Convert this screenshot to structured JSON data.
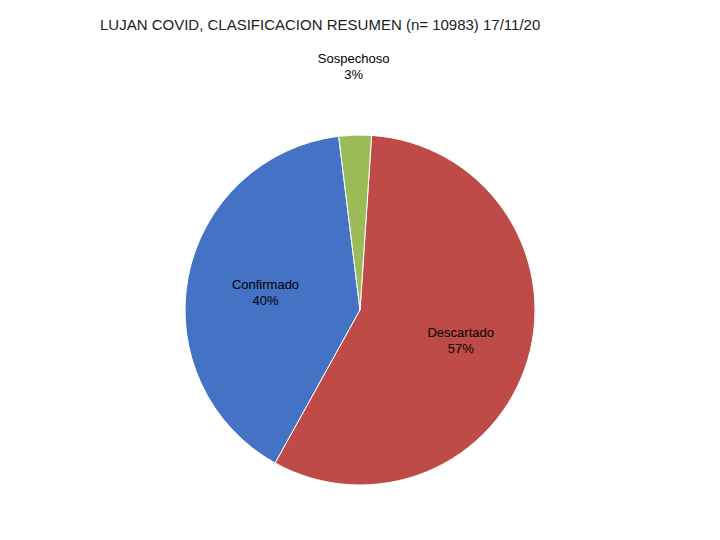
{
  "chart_data": {
    "type": "pie",
    "title": "LUJAN COVID, CLASIFICACION RESUMEN (n= 10983) 17/11/20",
    "categories": [
      "Confirmado",
      "Descartado",
      "Sospechoso"
    ],
    "values": [
      40,
      57,
      3
    ],
    "value_labels": [
      "40%",
      "57%",
      "3%"
    ],
    "colors": [
      "#4472C4",
      "#BE4B48",
      "#9BBB59"
    ],
    "data_labels": true
  }
}
